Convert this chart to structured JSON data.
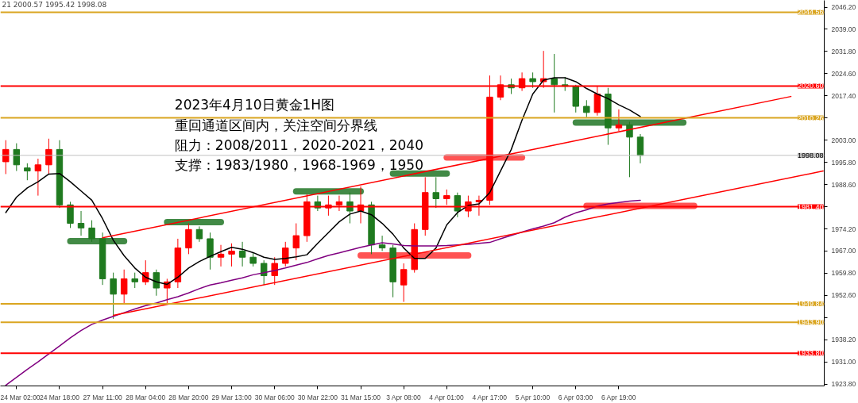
{
  "chart_data": {
    "type": "candlestick",
    "title": "2023年4月10日黄金1H图",
    "annotations": [
      "21 2000.57 1995.42 1998.08",
      "重回通道区间内，关注空间分界线",
      "阻力：2008/2011，2020-2021，2040",
      "支撑：1983/1980，1968-1969，1950"
    ],
    "categories": [
      null,
      "24 Mar 02:00",
      null,
      null,
      null,
      "24 Mar 18:00",
      null,
      null,
      null,
      "27 Mar 11:00",
      null,
      null,
      null,
      "28 Mar 04:00",
      null,
      null,
      null,
      "28 Mar 20:00",
      null,
      null,
      null,
      "29 Mar 13:00",
      null,
      null,
      null,
      "30 Mar 06:00",
      null,
      null,
      null,
      "30 Mar 22:00",
      null,
      null,
      null,
      "31 Mar 15:00",
      null,
      null,
      null,
      "3 Apr 08:00",
      null,
      null,
      null,
      "4 Apr 01:00",
      null,
      null,
      null,
      "4 Apr 17:00",
      null,
      null,
      null,
      "5 Apr 10:00",
      null,
      null,
      null,
      "6 Apr 03:00",
      null,
      null,
      null,
      "6 Apr 19:00",
      null,
      null,
      null,
      null,
      null,
      null,
      null,
      null,
      null,
      null,
      null,
      null,
      null,
      null,
      null,
      null,
      null,
      null,
      null
    ],
    "ohlc": [
      [
        1996,
        2003,
        1992,
        2000
      ],
      [
        2000,
        2002,
        1993,
        1995
      ],
      [
        1994,
        1995.5,
        1990,
        1993
      ],
      [
        1993,
        1997,
        1985,
        1995
      ],
      [
        1995,
        2003.5,
        1992,
        2000
      ],
      [
        2000,
        2003,
        1981,
        1982
      ],
      [
        1982,
        1983,
        1974.5,
        1976
      ],
      [
        1976,
        1980,
        1972,
        1974.5
      ],
      [
        1974.5,
        1977,
        1970,
        1971
      ],
      [
        1971,
        1973,
        1956,
        1958
      ],
      [
        1958,
        1960,
        1945,
        1953
      ],
      [
        1953,
        1961,
        1950,
        1958
      ],
      [
        1958,
        1960,
        1955,
        1957
      ],
      [
        1957,
        1964,
        1956,
        1960
      ],
      [
        1960,
        1961,
        1952.5,
        1955
      ],
      [
        1955,
        1958,
        1950,
        1957
      ],
      [
        1957,
        1971,
        1955,
        1968
      ],
      [
        1968,
        1976,
        1966,
        1974
      ],
      [
        1974,
        1975,
        1970,
        1971
      ],
      [
        1971,
        1973,
        1961,
        1965
      ],
      [
        1965,
        1969,
        1962,
        1966
      ],
      [
        1966,
        1969.5,
        1962,
        1967
      ],
      [
        1967,
        1970,
        1962,
        1965
      ],
      [
        1965,
        1966.5,
        1962,
        1963
      ],
      [
        1963,
        1964,
        1956,
        1959
      ],
      [
        1959,
        1965,
        1956,
        1963
      ],
      [
        1963,
        1970,
        1962,
        1968
      ],
      [
        1968,
        1976,
        1964,
        1972
      ],
      [
        1972,
        1985.5,
        1970,
        1983
      ],
      [
        1983,
        1985,
        1980,
        1981
      ],
      [
        1981,
        1985,
        1978.5,
        1982
      ],
      [
        1982,
        1985,
        1980,
        1983
      ],
      [
        1983,
        1986,
        1976,
        1980
      ],
      [
        1980,
        1988,
        1976,
        1982
      ],
      [
        1982,
        1983,
        1966,
        1969
      ],
      [
        1969,
        1972,
        1967,
        1968
      ],
      [
        1968,
        1969,
        1952,
        1957
      ],
      [
        1956,
        1963,
        1950.5,
        1961
      ],
      [
        1961,
        1976,
        1960,
        1974
      ],
      [
        1974,
        1991,
        1972,
        1986
      ],
      [
        1986,
        1991,
        1981,
        1984
      ],
      [
        1984,
        1987,
        1982,
        1985
      ],
      [
        1985,
        1986,
        1978,
        1980
      ],
      [
        1980,
        1985,
        1978,
        1983
      ],
      [
        1983,
        1985,
        1978.5,
        1983.5
      ],
      [
        1983.5,
        2024,
        1982,
        2017
      ],
      [
        2017,
        2024,
        2016,
        2021
      ],
      [
        2021,
        2023,
        2018,
        2020
      ],
      [
        2020,
        2025,
        2019,
        2023
      ],
      [
        2023,
        2025,
        2020,
        2022
      ],
      [
        2022,
        2032,
        2020,
        2023
      ],
      [
        2023,
        2031,
        2012,
        2021
      ],
      [
        2021,
        2023.5,
        2019,
        2020.5
      ],
      [
        2020.5,
        2021,
        2012,
        2014
      ],
      [
        2014,
        2016,
        2010.5,
        2012
      ],
      [
        2012,
        2020.5,
        2011,
        2018
      ],
      [
        2018,
        2020,
        2001.5,
        2007
      ],
      [
        2007,
        2013,
        2006,
        2008
      ],
      [
        2008,
        2009,
        1991,
        2004
      ],
      [
        2004,
        2005,
        1995.5,
        1998.08
      ],
      null,
      null,
      null,
      null,
      null,
      null,
      null,
      null,
      null,
      null,
      null,
      null,
      null,
      null,
      null,
      null,
      null
    ],
    "ylim": [
      1923.2,
      2048.4
    ],
    "yticks": [
      {
        "value": 1923.8,
        "label": "1923.80"
      },
      {
        "value": 1931,
        "label": "1931.00"
      },
      {
        "value": 1938.2,
        "label": "1938.20"
      },
      {
        "value": 1945.4,
        "label": null
      },
      {
        "value": 1952.6,
        "label": "1952.60"
      },
      {
        "value": 1959.8,
        "label": "1959.80"
      },
      {
        "value": 1967,
        "label": "1967.00"
      },
      {
        "value": 1974.2,
        "label": "1974.20"
      },
      {
        "value": 1981.4,
        "label": null
      },
      {
        "value": 1988.6,
        "label": "1988.60"
      },
      {
        "value": 1995.8,
        "label": "1995.80"
      },
      {
        "value": 2003,
        "label": "2003.00"
      },
      {
        "value": 2010.2,
        "label": null
      },
      {
        "value": 2017.4,
        "label": "2017.40"
      },
      {
        "value": 2024.6,
        "label": "2024.60"
      },
      {
        "value": 2031.8,
        "label": "2031.80"
      },
      {
        "value": 2039,
        "label": "2039.00"
      },
      {
        "value": 2046.2,
        "label": "2046.20"
      }
    ],
    "ref_lines": [
      {
        "axis": "y",
        "value": 2044.56,
        "label": "2044.56",
        "color": "#daa520"
      },
      {
        "axis": "y",
        "value": 2020.6,
        "label": "2020.60",
        "color": "#ff0000"
      },
      {
        "axis": "y",
        "value": 2010.26,
        "label": "2010.26",
        "color": "#daa520"
      },
      {
        "axis": "y",
        "value": 1998.08,
        "label": "1998.08",
        "color": "#c0c0c0"
      },
      {
        "axis": "y",
        "value": 1981.4,
        "label": "1981.40",
        "color": "#ff0000"
      },
      {
        "axis": "y",
        "value": 1949.84,
        "label": "1949.84",
        "color": "#daa520"
      },
      {
        "axis": "y",
        "value": 1943.9,
        "label": "1943.90",
        "color": "#daa520"
      },
      {
        "axis": "y",
        "value": 1933.8,
        "label": "1933.80",
        "color": "#ff0000"
      }
    ],
    "series": [
      {
        "type": "line",
        "color": "#000000",
        "values": [
          1979.5,
          1984.5,
          1987.5,
          1989.5,
          1992,
          1992.2,
          1989.5,
          1986.5,
          1983.5,
          1977.5,
          1970.5,
          1965.5,
          1961.5,
          1958.5,
          1957,
          1956.2,
          1958.5,
          1961.5,
          1963.6,
          1965.3,
          1966.8,
          1968.2,
          1967.6,
          1966.5,
          1965,
          1964.3,
          1964.6,
          1965.1,
          1965.8,
          1969.5,
          1973,
          1976.5,
          1979,
          1980,
          1978.8,
          1976,
          1972.5,
          1968,
          1964.6,
          1964.6,
          1968,
          1975.5,
          1979.5,
          1981.8,
          1982.3,
          1986,
          1993,
          2000,
          2009.5,
          2018,
          2022.5,
          2023.3,
          2023.3,
          2022,
          2019.8,
          2018,
          2016.5,
          2014.5,
          2012.8,
          2010.7,
          null,
          null,
          null,
          null,
          null,
          null,
          null,
          null,
          null,
          null,
          null,
          null,
          null,
          null,
          null,
          null,
          null
        ]
      },
      {
        "type": "line",
        "color": "#800080",
        "values": [
          1923.4,
          1926,
          1928.6,
          1931,
          1933.6,
          1936.2,
          1938.8,
          1941.2,
          1943.2,
          1944.6,
          1945.8,
          1947,
          1948.2,
          1949.3,
          1950.1,
          1951.2,
          1952.2,
          1953.4,
          1954.8,
          1956,
          1956.7,
          1957.5,
          1958.3,
          1959.3,
          1960,
          1960.7,
          1961.5,
          1962.4,
          1963.3,
          1964.5,
          1965.6,
          1966.4,
          1967.3,
          1968.2,
          1969,
          1969.7,
          1969.3,
          1968.8,
          1968.7,
          1968.7,
          1968.7,
          1968.8,
          1969,
          1969.2,
          1969.5,
          1969.8,
          1971,
          1972.1,
          1973.2,
          1974.2,
          1975.1,
          1976.2,
          1978,
          1979.4,
          1980.4,
          1981.6,
          1982.3,
          1982.8,
          1983.2,
          1983.5,
          null,
          null,
          null,
          null,
          null,
          null,
          null,
          null,
          null,
          null,
          null,
          null,
          null,
          null,
          null,
          null,
          null
        ]
      },
      {
        "type": "line",
        "color": "#ff0000",
        "values": [
          null,
          null,
          null,
          null,
          null,
          null,
          null,
          null,
          null,
          1971.3,
          null,
          null,
          null,
          null,
          null,
          null,
          null,
          null,
          null,
          null,
          null,
          null,
          null,
          null,
          null,
          null,
          null,
          null,
          null,
          null,
          null,
          null,
          null,
          null,
          null,
          null,
          null,
          null,
          null,
          null,
          null,
          null,
          null,
          null,
          null,
          null,
          null,
          null,
          null,
          null,
          null,
          null,
          null,
          null,
          null,
          null,
          null,
          null,
          null,
          null,
          null,
          null,
          null,
          null,
          null,
          null,
          null,
          null,
          null,
          null,
          null,
          null,
          null,
          2017.2,
          null,
          null,
          null
        ]
      },
      {
        "type": "line",
        "color": "#ff0000",
        "values": [
          null,
          null,
          null,
          null,
          null,
          null,
          null,
          null,
          null,
          null,
          1946.1,
          null,
          null,
          null,
          null,
          null,
          null,
          null,
          null,
          null,
          null,
          null,
          null,
          null,
          null,
          null,
          null,
          null,
          null,
          null,
          null,
          null,
          null,
          null,
          null,
          null,
          null,
          null,
          null,
          null,
          null,
          null,
          null,
          null,
          null,
          null,
          null,
          null,
          null,
          null,
          null,
          null,
          null,
          null,
          null,
          null,
          null,
          null,
          null,
          null,
          null,
          null,
          null,
          null,
          null,
          null,
          null,
          null,
          null,
          null,
          null,
          null,
          null,
          null,
          null,
          null,
          1993.0
        ]
      },
      {
        "type": "line",
        "color": "#2e7d32",
        "values": [
          null,
          null,
          null,
          null,
          null,
          null,
          1970.2,
          null,
          null,
          null,
          null,
          1970.2,
          null,
          null,
          null,
          null,
          null,
          null,
          null,
          null,
          null,
          null,
          null,
          null,
          null,
          null,
          null,
          null,
          null,
          null,
          null,
          null,
          null,
          null,
          null,
          null,
          null,
          null,
          null,
          null,
          null,
          null,
          null,
          null,
          null,
          null,
          null,
          null,
          null,
          null,
          null,
          null,
          null,
          null,
          null,
          null,
          null,
          null,
          null,
          null,
          null,
          null,
          null,
          null,
          null,
          null,
          null,
          null,
          null,
          null,
          null,
          null,
          null,
          null,
          null,
          null,
          null
        ]
      },
      {
        "type": "line",
        "color": "#2e7d32",
        "values": [
          null,
          null,
          null,
          null,
          null,
          null,
          null,
          null,
          null,
          null,
          null,
          null,
          null,
          null,
          null,
          1976.4,
          null,
          null,
          null,
          null,
          1976.4,
          null,
          null,
          null,
          null,
          null,
          null,
          null,
          null,
          null,
          null,
          null,
          null,
          null,
          null,
          null,
          null,
          null,
          null,
          null,
          null,
          null,
          null,
          null,
          null,
          null,
          null,
          null,
          null,
          null,
          null,
          null,
          null,
          null,
          null,
          null,
          null,
          null,
          null,
          null,
          null,
          null,
          null,
          null,
          null,
          null,
          null,
          null,
          null,
          null,
          null,
          null,
          null,
          null,
          null,
          null,
          null
        ]
      },
      {
        "type": "line",
        "color": "#2e7d32",
        "values": [
          null,
          null,
          null,
          null,
          null,
          null,
          null,
          null,
          null,
          null,
          null,
          null,
          null,
          null,
          null,
          null,
          null,
          null,
          null,
          null,
          null,
          null,
          null,
          null,
          null,
          null,
          null,
          1986.4,
          null,
          null,
          null,
          null,
          null,
          1986.4,
          null,
          null,
          null,
          null,
          null,
          null,
          null,
          null,
          null,
          null,
          null,
          null,
          null,
          null,
          null,
          null,
          null,
          null,
          null,
          null,
          null,
          null,
          null,
          null,
          null,
          null,
          null,
          null,
          null,
          null,
          null,
          null,
          null,
          null,
          null,
          null,
          null,
          null,
          null,
          null,
          null,
          null,
          null
        ]
      },
      {
        "type": "line",
        "color": "#2e7d32",
        "values": [
          null,
          null,
          null,
          null,
          null,
          null,
          null,
          null,
          null,
          null,
          null,
          null,
          null,
          null,
          null,
          null,
          null,
          null,
          null,
          null,
          null,
          null,
          null,
          null,
          null,
          null,
          null,
          null,
          null,
          null,
          null,
          null,
          null,
          null,
          null,
          null,
          1992.2,
          null,
          null,
          null,
          null,
          1992.2,
          null,
          null,
          null,
          null,
          null,
          null,
          null,
          null,
          null,
          null,
          null,
          null,
          null,
          null,
          null,
          null,
          null,
          null,
          null,
          null,
          null,
          null,
          null,
          null,
          null,
          null,
          null,
          null,
          null,
          null,
          null,
          null,
          null,
          null,
          null
        ]
      },
      {
        "type": "line",
        "color": "#ff4040",
        "values": [
          null,
          null,
          null,
          null,
          null,
          null,
          null,
          null,
          null,
          null,
          null,
          null,
          null,
          null,
          null,
          null,
          null,
          null,
          null,
          null,
          null,
          null,
          null,
          null,
          null,
          null,
          null,
          null,
          null,
          null,
          null,
          null,
          null,
          null,
          null,
          null,
          null,
          null,
          null,
          null,
          null,
          1997.4,
          null,
          null,
          null,
          null,
          null,
          null,
          1997.4,
          null,
          null,
          null,
          null,
          null,
          null,
          null,
          null,
          null,
          null,
          null,
          null,
          null,
          null,
          null,
          null,
          null,
          null,
          null,
          null,
          null,
          null,
          null,
          null,
          null,
          null,
          null,
          null
        ]
      },
      {
        "type": "line",
        "color": "#ff4040",
        "values": [
          null,
          null,
          null,
          null,
          null,
          null,
          null,
          null,
          null,
          null,
          null,
          null,
          null,
          null,
          null,
          null,
          null,
          null,
          null,
          null,
          null,
          null,
          null,
          null,
          null,
          null,
          null,
          null,
          null,
          null,
          null,
          null,
          null,
          1965.6,
          null,
          null,
          null,
          null,
          null,
          null,
          null,
          null,
          null,
          1965.6,
          null,
          null,
          null,
          null,
          null,
          null,
          null,
          null,
          null,
          null,
          null,
          null,
          null,
          null,
          null,
          null,
          null,
          null,
          null,
          null,
          null,
          null,
          null,
          null,
          null,
          null,
          null,
          null,
          null,
          null,
          null,
          null,
          null
        ]
      },
      {
        "type": "line",
        "color": "#2e7d32",
        "values": [
          null,
          null,
          null,
          null,
          null,
          null,
          null,
          null,
          null,
          null,
          null,
          null,
          null,
          null,
          null,
          null,
          null,
          null,
          null,
          null,
          null,
          null,
          null,
          null,
          null,
          null,
          null,
          null,
          null,
          null,
          null,
          null,
          null,
          null,
          null,
          null,
          null,
          null,
          null,
          null,
          null,
          null,
          null,
          null,
          null,
          null,
          null,
          null,
          null,
          null,
          null,
          null,
          null,
          2008.7,
          null,
          null,
          null,
          null,
          null,
          null,
          null,
          null,
          null,
          2008.7,
          null,
          null,
          null,
          null,
          null,
          null,
          null,
          null,
          null,
          null,
          null,
          null,
          null
        ]
      },
      {
        "type": "line",
        "color": "#ff4040",
        "values": [
          null,
          null,
          null,
          null,
          null,
          null,
          null,
          null,
          null,
          null,
          null,
          null,
          null,
          null,
          null,
          null,
          null,
          null,
          null,
          null,
          null,
          null,
          null,
          null,
          null,
          null,
          null,
          null,
          null,
          null,
          null,
          null,
          null,
          null,
          null,
          null,
          null,
          null,
          null,
          null,
          null,
          null,
          null,
          null,
          null,
          null,
          null,
          null,
          null,
          null,
          null,
          null,
          null,
          null,
          1981.7,
          null,
          null,
          null,
          null,
          null,
          null,
          null,
          null,
          null,
          1981.7,
          null,
          null,
          null,
          null,
          null,
          null,
          null,
          null,
          null,
          null,
          null,
          null
        ]
      }
    ]
  }
}
